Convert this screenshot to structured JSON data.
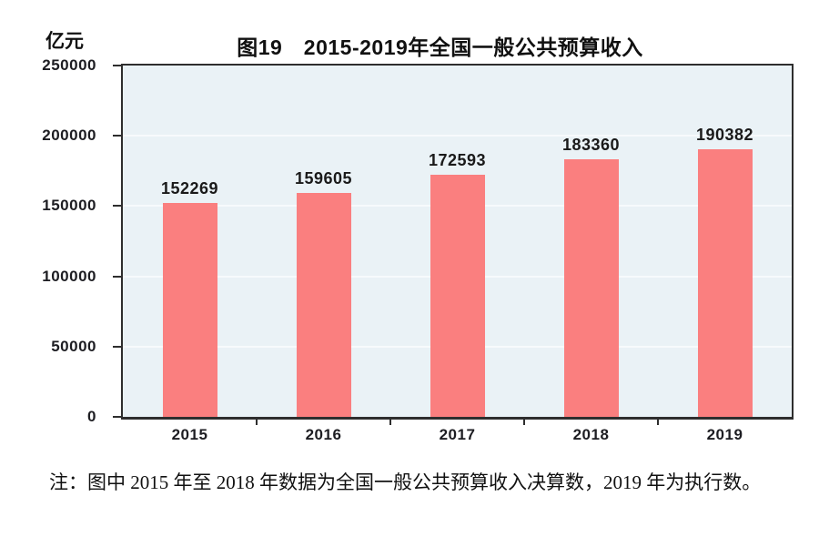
{
  "chart_data": {
    "type": "bar",
    "title": "图19　2015-2019年全国一般公共预算收入",
    "unit_label": "亿元",
    "categories": [
      "2015",
      "2016",
      "2017",
      "2018",
      "2019"
    ],
    "values": [
      152269,
      159605,
      172593,
      183360,
      190382
    ],
    "value_labels": [
      "152269",
      "159605",
      "172593",
      "183360",
      "190382"
    ],
    "ylim": [
      0,
      250000
    ],
    "ytick_interval": 50000,
    "ytick_labels": [
      "0",
      "50000",
      "100000",
      "150000",
      "200000",
      "250000"
    ],
    "grid": true,
    "legend": "none",
    "colors": {
      "bar": "#fa7f7f",
      "plot_background": "#eaf2f6",
      "gridline": "#f7fafc",
      "axis_border": "#2e2e2e",
      "text": "#1a1a1a"
    }
  },
  "note": {
    "text": "注：图中 2015 年至 2018 年数据为全国一般公共预算收入决算数，2019 年为执行数。"
  }
}
